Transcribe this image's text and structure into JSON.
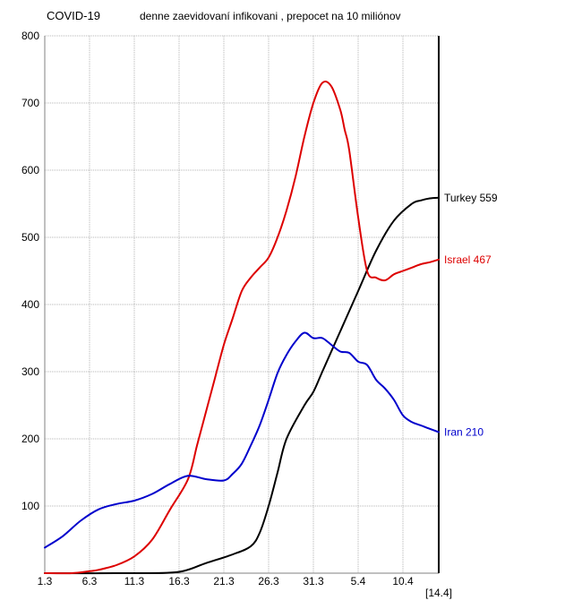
{
  "chart_data": {
    "type": "line",
    "title": "COVID-19",
    "subtitle": "denne zaevidovaní infikovani , prepocet na 10 miliónov",
    "x_tick_labels": [
      "1.3",
      "6.3",
      "11.3",
      "16.3",
      "21.3",
      "26.3",
      "31.3",
      "5.4",
      "10.4"
    ],
    "x_end_label": "[14.4]",
    "x_range_days": [
      1,
      45
    ],
    "ylim": [
      0,
      800
    ],
    "y_tick_labels": [
      "100",
      "200",
      "300",
      "400",
      "500",
      "600",
      "700",
      "800"
    ],
    "grid": true,
    "series": [
      {
        "name": "Turkey",
        "end_value": "559",
        "end_label": "Turkey 559",
        "color": "#000000",
        "x": [
          1,
          11,
          16,
          19,
          22,
          24,
          25,
          26,
          27,
          28,
          30,
          31,
          32,
          34,
          36,
          38,
          40,
          42,
          43,
          44,
          45
        ],
        "y": [
          0,
          0,
          2,
          15,
          28,
          40,
          60,
          100,
          150,
          200,
          250,
          270,
          300,
          360,
          420,
          480,
          525,
          550,
          555,
          558,
          559
        ]
      },
      {
        "name": "Israel",
        "end_value": "467",
        "end_label": "Israel 467",
        "color": "#dd0000",
        "x": [
          1,
          4,
          6,
          7,
          9,
          11,
          13,
          15,
          17,
          18,
          19,
          20,
          21,
          22,
          23,
          24,
          25,
          26,
          27,
          28,
          29,
          30,
          31,
          32,
          33,
          34,
          34.5,
          35,
          36,
          37,
          38,
          39,
          40,
          41,
          42,
          43,
          44,
          45
        ],
        "y": [
          0,
          0,
          3,
          5,
          12,
          25,
          50,
          95,
          140,
          190,
          240,
          290,
          340,
          380,
          420,
          440,
          455,
          470,
          500,
          540,
          590,
          650,
          700,
          730,
          725,
          690,
          660,
          630,
          530,
          450,
          440,
          436,
          445,
          450,
          455,
          460,
          463,
          467
        ]
      },
      {
        "name": "Iran",
        "end_value": "210",
        "end_label": "Iran 210",
        "color": "#0000cc",
        "x": [
          1,
          3,
          5,
          7,
          9,
          11,
          13,
          15,
          17,
          19,
          21,
          22,
          23,
          24,
          25,
          26,
          27,
          28,
          29,
          30,
          31,
          32,
          33,
          34,
          35,
          36,
          37,
          38,
          39,
          40,
          41,
          42,
          43,
          44,
          45
        ],
        "y": [
          38,
          55,
          78,
          95,
          103,
          108,
          118,
          133,
          145,
          140,
          138,
          148,
          163,
          190,
          220,
          258,
          298,
          325,
          345,
          358,
          350,
          350,
          340,
          330,
          328,
          315,
          310,
          288,
          275,
          258,
          235,
          225,
          220,
          215,
          210
        ]
      }
    ]
  }
}
